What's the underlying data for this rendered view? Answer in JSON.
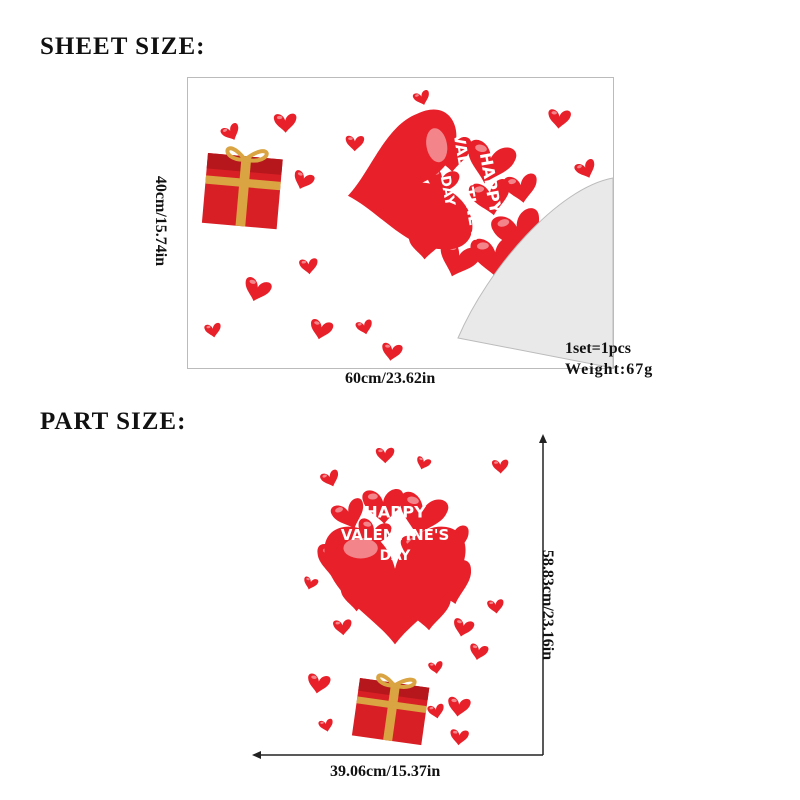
{
  "sheet_section": {
    "title": "SHEET SIZE:",
    "height_label": "40cm/15.74in",
    "width_label": "60cm/23.62in",
    "quantity": "1set=1pcs",
    "weight": "Weight:67g"
  },
  "part_section": {
    "title": "PART SIZE:",
    "height_label": "58.83cm/23.16in",
    "width_label": "39.06cm/15.37in"
  },
  "artwork": {
    "line1": "HAPPY",
    "line2": "VALENTINE'S",
    "line3": "DAY"
  },
  "colors": {
    "heart": "#e8202a",
    "gift": "#d71f25",
    "ribbon": "#d9a441"
  }
}
